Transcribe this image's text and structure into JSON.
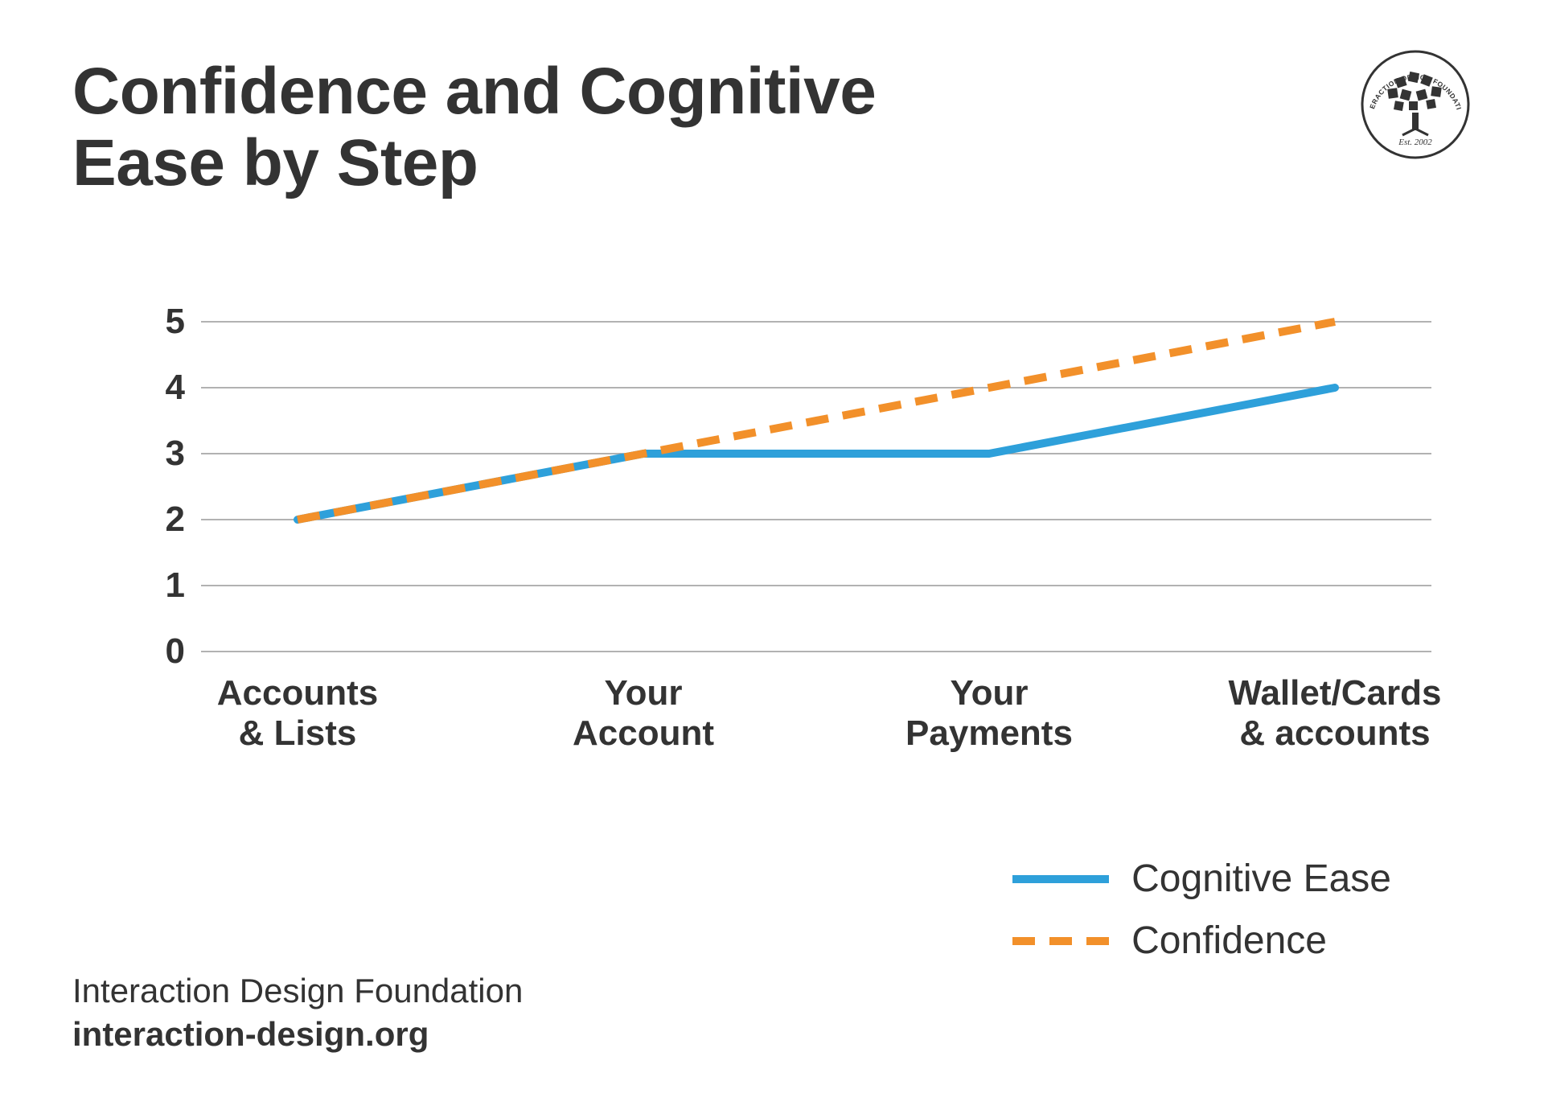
{
  "title": "Confidence and Cognitive Ease by Step",
  "chart": {
    "type": "line",
    "background_color": "#ffffff",
    "grid_color": "#999999",
    "yaxis": {
      "min": 0,
      "max": 5,
      "ticks": [
        0,
        1,
        2,
        3,
        4,
        5
      ],
      "tick_fontsize": 44,
      "tick_fontweight": 800,
      "tick_color": "#333333"
    },
    "xaxis": {
      "categories": [
        [
          "Accounts",
          "& Lists"
        ],
        [
          "Your",
          "Account"
        ],
        [
          "Your",
          "Payments"
        ],
        [
          "Wallet/Cards",
          "& accounts"
        ]
      ],
      "tick_fontsize": 44,
      "tick_fontweight": 800,
      "tick_color": "#333333"
    },
    "series": [
      {
        "name": "Cognitive Ease",
        "values": [
          2,
          3,
          3,
          4
        ],
        "color": "#2ea0da",
        "line_width": 10,
        "style": "solid"
      },
      {
        "name": "Confidence",
        "values": [
          2,
          3,
          4,
          5
        ],
        "color": "#f2902a",
        "line_width": 10,
        "style": "dashed",
        "dash": "28 18"
      }
    ]
  },
  "legend": {
    "items": [
      {
        "label": "Cognitive Ease",
        "color": "#2ea0da",
        "style": "solid",
        "line_width": 10
      },
      {
        "label": "Confidence",
        "color": "#f2902a",
        "style": "dashed",
        "line_width": 10,
        "dash": "28 18"
      }
    ],
    "fontsize": 48
  },
  "footer": {
    "org": "Interaction Design Foundation",
    "url": "interaction-design.org"
  },
  "logo": {
    "circle_stroke": "#333333",
    "est_text": "Est. 2002",
    "top_text": "INTERACTION DESIGN FOUNDATION"
  }
}
